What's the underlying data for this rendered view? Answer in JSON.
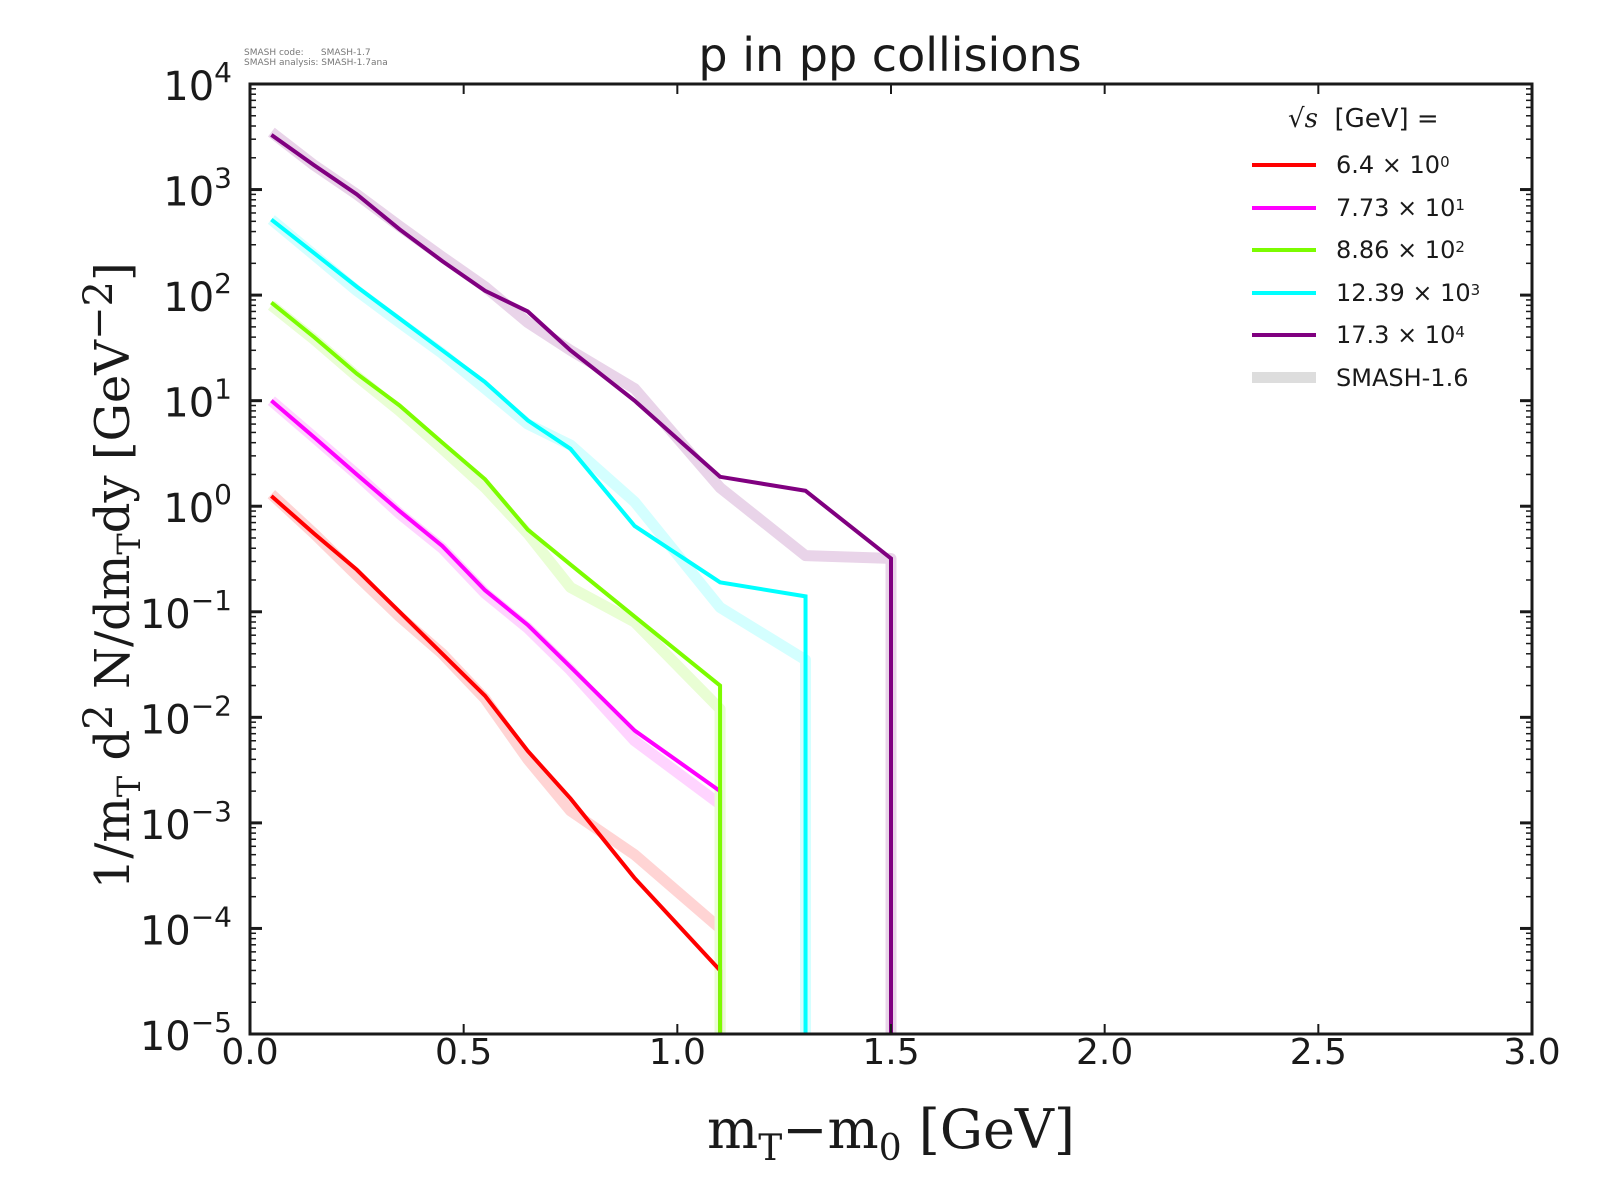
{
  "chart_data": {
    "type": "line",
    "title": "p in pp collisions",
    "xlabel": "m_T−m_0 [GeV]",
    "ylabel": "1/m_T d^2 N/dm_T dy [GeV^−2]",
    "yscale": "log",
    "xlim": [
      0.0,
      3.0
    ],
    "ylim": [
      1e-05,
      10000.0
    ],
    "x_ticks": [
      "0.0",
      "0.5",
      "1.0",
      "1.5",
      "2.0",
      "2.5",
      "3.0"
    ],
    "y_ticks": [
      "10^4",
      "10^3",
      "10^2",
      "10^1",
      "10^0",
      "10^-1",
      "10^-2",
      "10^-3",
      "10^-4",
      "10^-5"
    ],
    "legend_title": "[GeV] =",
    "legend_position": "top-right",
    "series": [
      {
        "name": "6.4 × 10",
        "exp": "0",
        "color": "#ff0000",
        "x": [
          0.05,
          0.15,
          0.25,
          0.35,
          0.45,
          0.55,
          0.65,
          0.75,
          0.9,
          1.1,
          1.1
        ],
        "values": [
          1.25,
          0.55,
          0.25,
          0.1,
          0.04,
          0.016,
          0.0048,
          0.0017,
          0.0003,
          4e-05,
          1e-05
        ],
        "ref": [
          1.3,
          0.55,
          0.22,
          0.09,
          0.04,
          0.015,
          0.004,
          0.0013,
          0.0005,
          0.0001,
          1e-05
        ]
      },
      {
        "name": "7.73 × 10",
        "exp": "1",
        "color": "#ff00ff",
        "x": [
          0.05,
          0.15,
          0.25,
          0.35,
          0.45,
          0.55,
          0.65,
          0.75,
          0.9,
          1.1,
          1.1
        ],
        "values": [
          10,
          4.5,
          2,
          0.9,
          0.42,
          0.16,
          0.075,
          0.03,
          0.0075,
          0.002,
          1e-05
        ],
        "ref": [
          10,
          4.5,
          2,
          0.85,
          0.4,
          0.15,
          0.07,
          0.028,
          0.006,
          0.0015,
          1e-05
        ]
      },
      {
        "name": "8.86 × 10",
        "exp": "2",
        "color": "#7cfc00",
        "x": [
          0.05,
          0.15,
          0.25,
          0.35,
          0.45,
          0.55,
          0.65,
          0.75,
          0.9,
          1.1,
          1.1
        ],
        "values": [
          85,
          40,
          18,
          9,
          4,
          1.8,
          0.6,
          0.28,
          0.09,
          0.02,
          1e-05
        ],
        "ref": [
          80,
          38,
          17,
          8,
          3.5,
          1.5,
          0.55,
          0.17,
          0.08,
          0.012,
          1e-05
        ]
      },
      {
        "name": "12.39 × 10",
        "exp": "3",
        "color": "#00ffff",
        "x": [
          0.05,
          0.15,
          0.25,
          0.35,
          0.45,
          0.55,
          0.65,
          0.75,
          0.9,
          1.1,
          1.3,
          1.3
        ],
        "values": [
          520,
          250,
          120,
          60,
          30,
          15,
          6.5,
          3.5,
          0.65,
          0.19,
          0.14,
          1e-05
        ],
        "ref": [
          520,
          240,
          110,
          55,
          28,
          13,
          6,
          3.8,
          1.1,
          0.11,
          0.035,
          1e-05
        ]
      },
      {
        "name": "17.3 × 10",
        "exp": "4",
        "color": "#800080",
        "x": [
          0.05,
          0.15,
          0.25,
          0.35,
          0.45,
          0.55,
          0.65,
          0.75,
          0.9,
          1.1,
          1.3,
          1.5,
          1.5
        ],
        "values": [
          3300,
          1700,
          900,
          420,
          210,
          110,
          70,
          30,
          10,
          1.9,
          1.4,
          0.32,
          1e-05
        ],
        "ref": [
          3500,
          1700,
          900,
          450,
          230,
          120,
          55,
          30,
          13,
          1.5,
          0.34,
          0.32,
          1e-05
        ]
      }
    ],
    "reference_label": "SMASH-1.6",
    "reference_color": "#dddddd"
  },
  "meta": {
    "line1": "SMASH code:      SMASH-1.7",
    "line2": "SMASH analysis: SMASH-1.7ana"
  },
  "labels": {
    "sqrt_s": "√s",
    "ylabel_a": "1/m",
    "ylabel_sub1": "T",
    "ylabel_b": " d",
    "ylabel_sup": "2",
    "ylabel_c": " N/dm",
    "ylabel_sub2": "T",
    "ylabel_d": "dy [GeV",
    "ylabel_sup2": "−2",
    "ylabel_e": "]",
    "xlabel_a": "m",
    "xlabel_sub1": "T",
    "xlabel_b": "−m",
    "xlabel_sub2": "0",
    "xlabel_c": " [GeV]"
  }
}
